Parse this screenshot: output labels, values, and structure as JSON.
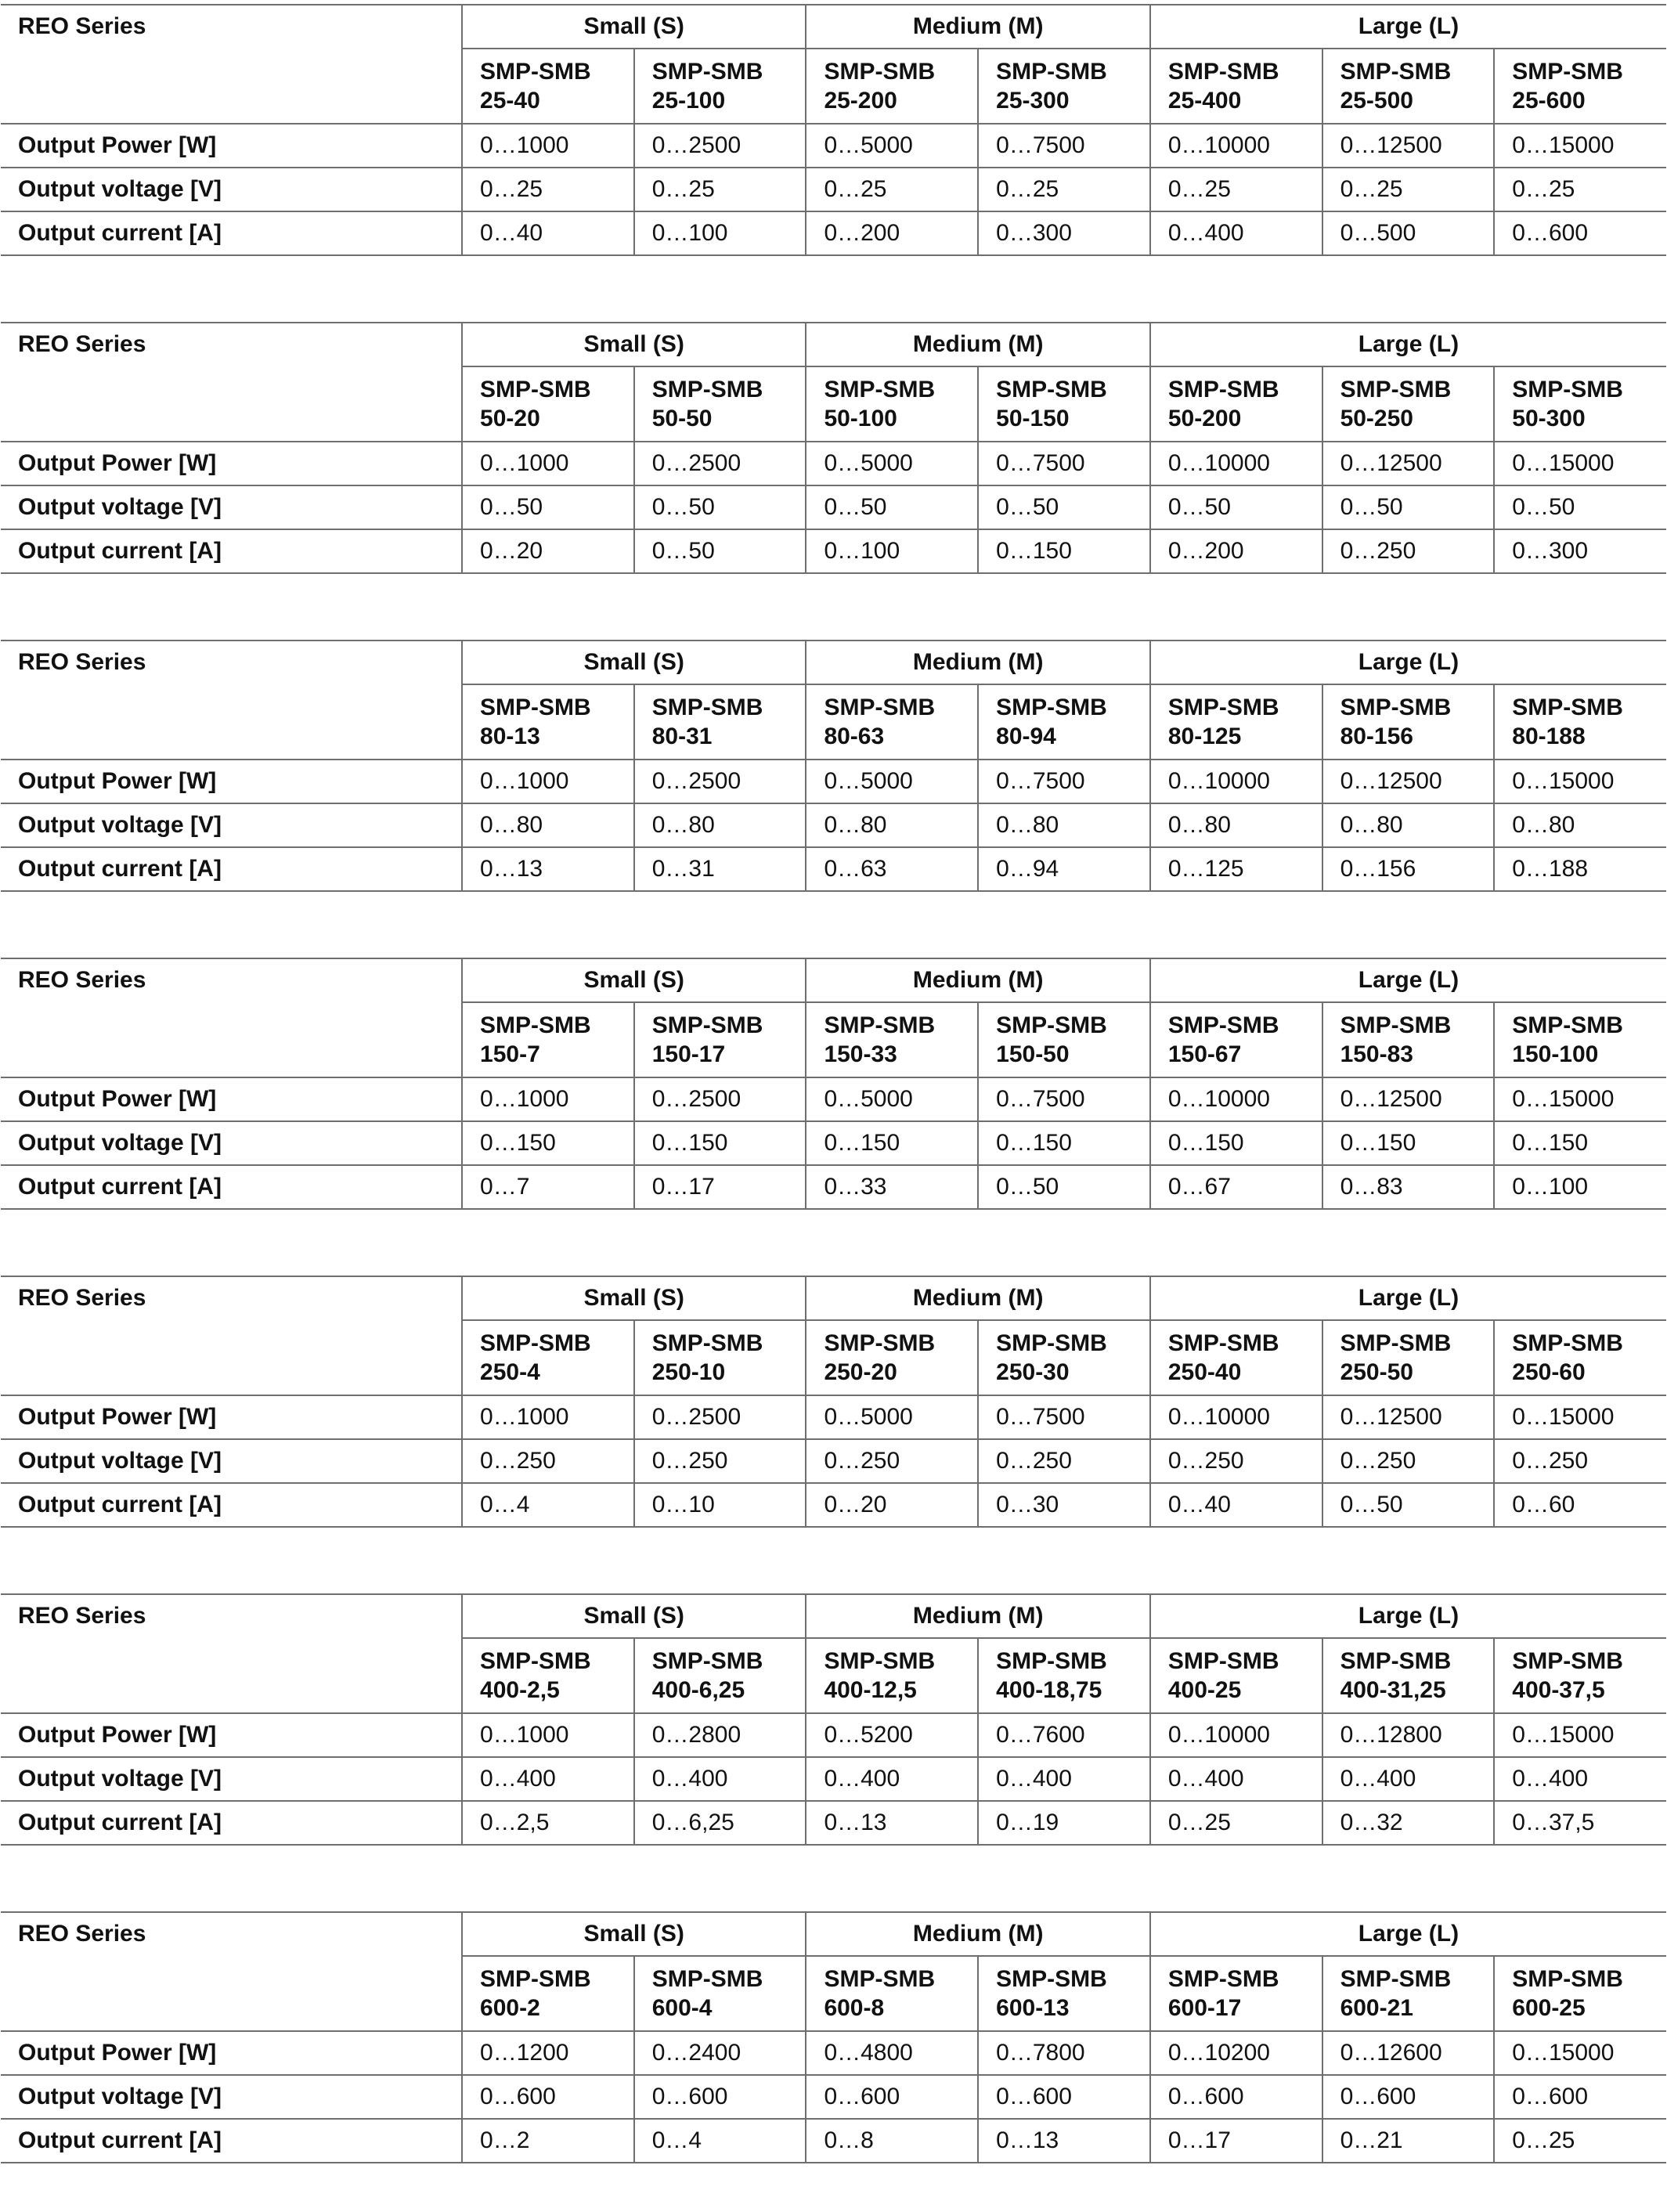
{
  "row_labels": {
    "power": "Output Power [W]",
    "voltage": "Output voltage [V]",
    "current": "Output current [A]"
  },
  "tables": [
    {
      "series_label": "REO Series",
      "groups": [
        "Small (S)",
        "Medium (M)",
        "Large (L)"
      ],
      "models": [
        [
          "SMP-SMB",
          "25-40"
        ],
        [
          "SMP-SMB",
          "25-100"
        ],
        [
          "SMP-SMB",
          "25-200"
        ],
        [
          "SMP-SMB",
          "25-300"
        ],
        [
          "SMP-SMB",
          "25-400"
        ],
        [
          "SMP-SMB",
          "25-500"
        ],
        [
          "SMP-SMB",
          "25-600"
        ]
      ],
      "power": [
        "0…1000",
        "0…2500",
        "0…5000",
        "0…7500",
        "0…10000",
        "0…12500",
        "0…15000"
      ],
      "voltage": [
        "0…25",
        "0…25",
        "0…25",
        "0…25",
        "0…25",
        "0…25",
        "0…25"
      ],
      "current": [
        "0…40",
        "0…100",
        "0…200",
        "0…300",
        "0…400",
        "0…500",
        "0…600"
      ]
    },
    {
      "series_label": "REO Series",
      "groups": [
        "Small (S)",
        "Medium (M)",
        "Large (L)"
      ],
      "models": [
        [
          "SMP-SMB",
          "50-20"
        ],
        [
          "SMP-SMB",
          "50-50"
        ],
        [
          "SMP-SMB",
          "50-100"
        ],
        [
          "SMP-SMB",
          "50-150"
        ],
        [
          "SMP-SMB",
          "50-200"
        ],
        [
          "SMP-SMB",
          "50-250"
        ],
        [
          "SMP-SMB",
          "50-300"
        ]
      ],
      "power": [
        "0…1000",
        "0…2500",
        "0…5000",
        "0…7500",
        "0…10000",
        "0…12500",
        "0…15000"
      ],
      "voltage": [
        "0…50",
        "0…50",
        "0…50",
        "0…50",
        "0…50",
        "0…50",
        "0…50"
      ],
      "current": [
        "0…20",
        "0…50",
        "0…100",
        "0…150",
        "0…200",
        "0…250",
        "0…300"
      ]
    },
    {
      "series_label": "REO Series",
      "groups": [
        "Small (S)",
        "Medium (M)",
        "Large (L)"
      ],
      "models": [
        [
          "SMP-SMB",
          "80-13"
        ],
        [
          "SMP-SMB",
          "80-31"
        ],
        [
          "SMP-SMB",
          "80-63"
        ],
        [
          "SMP-SMB",
          "80-94"
        ],
        [
          "SMP-SMB",
          "80-125"
        ],
        [
          "SMP-SMB",
          "80-156"
        ],
        [
          "SMP-SMB",
          "80-188"
        ]
      ],
      "power": [
        "0…1000",
        "0…2500",
        "0…5000",
        "0…7500",
        "0…10000",
        "0…12500",
        "0…15000"
      ],
      "voltage": [
        "0…80",
        "0…80",
        "0…80",
        "0…80",
        "0…80",
        "0…80",
        "0…80"
      ],
      "current": [
        "0…13",
        "0…31",
        "0…63",
        "0…94",
        "0…125",
        "0…156",
        "0…188"
      ]
    },
    {
      "series_label": "REO Series",
      "groups": [
        "Small (S)",
        "Medium (M)",
        "Large (L)"
      ],
      "models": [
        [
          "SMP-SMB",
          "150-7"
        ],
        [
          "SMP-SMB",
          "150-17"
        ],
        [
          "SMP-SMB",
          "150-33"
        ],
        [
          "SMP-SMB",
          "150-50"
        ],
        [
          "SMP-SMB",
          "150-67"
        ],
        [
          "SMP-SMB",
          "150-83"
        ],
        [
          "SMP-SMB",
          "150-100"
        ]
      ],
      "power": [
        "0…1000",
        "0…2500",
        "0…5000",
        "0…7500",
        "0…10000",
        "0…12500",
        "0…15000"
      ],
      "voltage": [
        "0…150",
        "0…150",
        "0…150",
        "0…150",
        "0…150",
        "0…150",
        "0…150"
      ],
      "current": [
        "0…7",
        "0…17",
        "0…33",
        "0…50",
        "0…67",
        "0…83",
        "0…100"
      ]
    },
    {
      "series_label": "REO Series",
      "groups": [
        "Small (S)",
        "Medium (M)",
        "Large (L)"
      ],
      "models": [
        [
          "SMP-SMB",
          "250-4"
        ],
        [
          "SMP-SMB",
          "250-10"
        ],
        [
          "SMP-SMB",
          "250-20"
        ],
        [
          "SMP-SMB",
          "250-30"
        ],
        [
          "SMP-SMB",
          "250-40"
        ],
        [
          "SMP-SMB",
          "250-50"
        ],
        [
          "SMP-SMB",
          "250-60"
        ]
      ],
      "power": [
        "0…1000",
        "0…2500",
        "0…5000",
        "0…7500",
        "0…10000",
        "0…12500",
        "0…15000"
      ],
      "voltage": [
        "0…250",
        "0…250",
        "0…250",
        "0…250",
        "0…250",
        "0…250",
        "0…250"
      ],
      "current": [
        "0…4",
        "0…10",
        "0…20",
        "0…30",
        "0…40",
        "0…50",
        "0…60"
      ]
    },
    {
      "series_label": "REO Series",
      "groups": [
        "Small (S)",
        "Medium (M)",
        "Large (L)"
      ],
      "models": [
        [
          "SMP-SMB",
          "400-2,5"
        ],
        [
          "SMP-SMB",
          "400-6,25"
        ],
        [
          "SMP-SMB",
          "400-12,5"
        ],
        [
          "SMP-SMB",
          "400-18,75"
        ],
        [
          "SMP-SMB",
          "400-25"
        ],
        [
          "SMP-SMB",
          "400-31,25"
        ],
        [
          "SMP-SMB",
          "400-37,5"
        ]
      ],
      "power": [
        "0…1000",
        "0…2800",
        "0…5200",
        "0…7600",
        "0…10000",
        "0…12800",
        "0…15000"
      ],
      "voltage": [
        "0…400",
        "0…400",
        "0…400",
        "0…400",
        "0…400",
        "0…400",
        "0…400"
      ],
      "current": [
        "0…2,5",
        "0…6,25",
        "0…13",
        "0…19",
        "0…25",
        "0…32",
        "0…37,5"
      ]
    },
    {
      "series_label": "REO Series",
      "groups": [
        "Small (S)",
        "Medium (M)",
        "Large (L)"
      ],
      "models": [
        [
          "SMP-SMB",
          "600-2"
        ],
        [
          "SMP-SMB",
          "600-4"
        ],
        [
          "SMP-SMB",
          "600-8"
        ],
        [
          "SMP-SMB",
          "600-13"
        ],
        [
          "SMP-SMB",
          "600-17"
        ],
        [
          "SMP-SMB",
          "600-21"
        ],
        [
          "SMP-SMB",
          "600-25"
        ]
      ],
      "power": [
        "0…1200",
        "0…2400",
        "0…4800",
        "0…7800",
        "0…10200",
        "0…12600",
        "0…15000"
      ],
      "voltage": [
        "0…600",
        "0…600",
        "0…600",
        "0…600",
        "0…600",
        "0…600",
        "0…600"
      ],
      "current": [
        "0…2",
        "0…4",
        "0…8",
        "0…13",
        "0…17",
        "0…21",
        "0…25"
      ]
    }
  ]
}
